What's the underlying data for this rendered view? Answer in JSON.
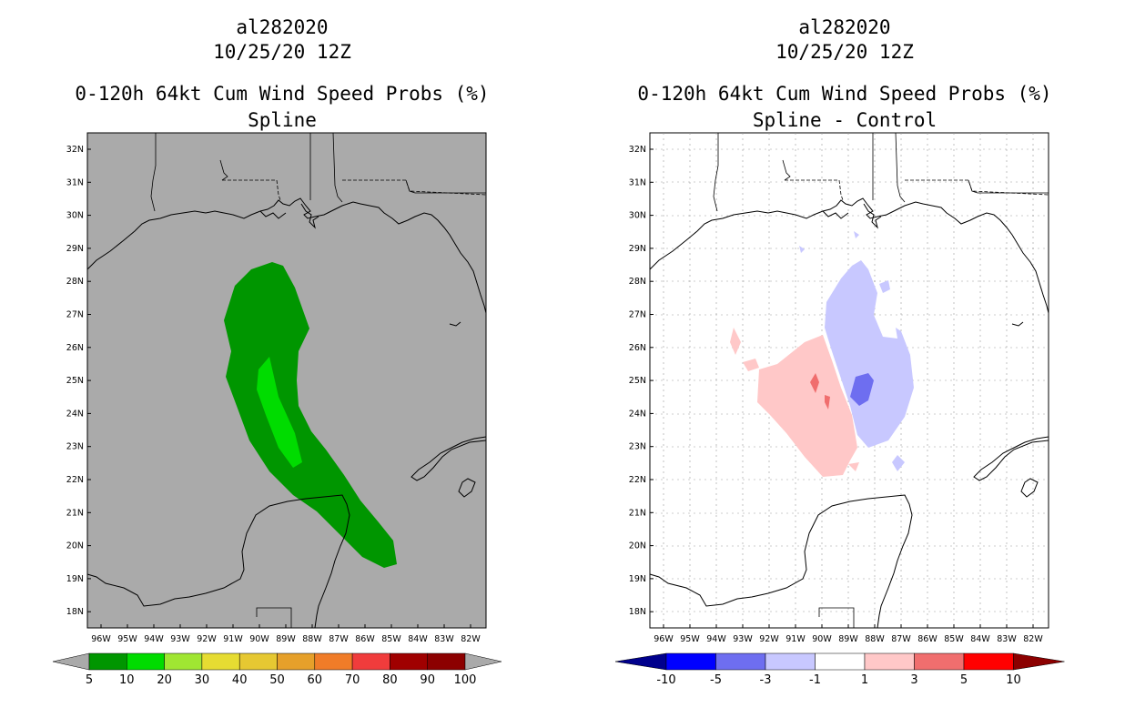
{
  "left_panel": {
    "storm_id": "al282020",
    "datetime": "10/25/20 12Z",
    "product": "0-120h 64kt Cum Wind Speed Probs (%)",
    "subtitle": "Spline",
    "colorbar": {
      "labels": [
        "5",
        "10",
        "20",
        "30",
        "40",
        "50",
        "60",
        "70",
        "80",
        "90",
        "100"
      ],
      "colors": [
        "#009600",
        "#00dc00",
        "#a0e632",
        "#e6dc32",
        "#e6c832",
        "#e6a02a",
        "#f07c28",
        "#f03c3c",
        "#a00000",
        "#8c0000",
        "#8c1ee6"
      ]
    }
  },
  "right_panel": {
    "storm_id": "al282020",
    "datetime": "10/25/20 12Z",
    "product": "0-120h 64kt Cum Wind Speed Probs (%)",
    "subtitle": "Spline - Control",
    "colorbar": {
      "labels": [
        "-10",
        "-5",
        "-3",
        "-1",
        "1",
        "3",
        "5",
        "10"
      ],
      "colors": [
        "#00008c",
        "#0000ff",
        "#6e6ef0",
        "#c8c8ff",
        "#ffffff",
        "#ffc8c8",
        "#f06e6e",
        "#ff0000",
        "#8c0000"
      ]
    }
  },
  "map": {
    "lat_labels": [
      "32N",
      "31N",
      "30N",
      "29N",
      "28N",
      "27N",
      "26N",
      "25N",
      "24N",
      "23N",
      "22N",
      "21N",
      "20N",
      "19N",
      "18N"
    ],
    "lon_labels": [
      "96W",
      "95W",
      "94W",
      "93W",
      "92W",
      "91W",
      "90W",
      "89W",
      "88W",
      "87W",
      "86W",
      "85W",
      "84W",
      "83W",
      "82W"
    ],
    "land_color": "#aaaaaa",
    "ocean_color_right": "#ffffff"
  }
}
